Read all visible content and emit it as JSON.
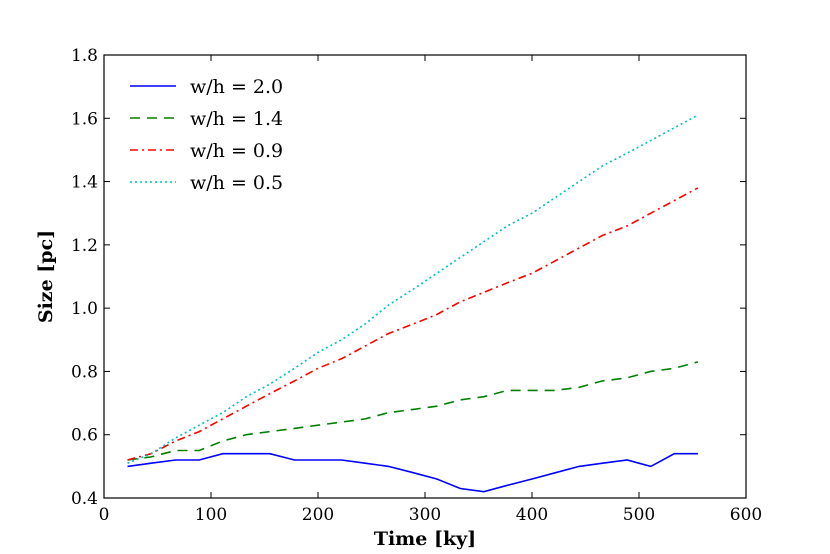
{
  "chart_data": {
    "type": "line",
    "title": "",
    "xlabel": "Time [ky]",
    "ylabel": "Size [pc]",
    "xlim": [
      0,
      600
    ],
    "ylim": [
      0.4,
      1.8
    ],
    "xticks": [
      0,
      100,
      200,
      300,
      400,
      500,
      600
    ],
    "xtick_labels": [
      "0",
      "100",
      "200",
      "300",
      "400",
      "500",
      "600"
    ],
    "yticks": [
      0.4,
      0.6,
      0.8,
      1.0,
      1.2,
      1.4,
      1.6,
      1.8
    ],
    "ytick_labels": [
      "0.4",
      "0.6",
      "0.8",
      "1.0",
      "1.2",
      "1.4",
      "1.6",
      "1.8"
    ],
    "grid": false,
    "legend_position": "top-left",
    "series": [
      {
        "name": "w/h = 2.0",
        "color": "#0000ff",
        "style": "solid",
        "x": [
          22,
          44,
          67,
          89,
          111,
          133,
          155,
          178,
          200,
          222,
          244,
          266,
          289,
          311,
          333,
          355,
          377,
          400,
          422,
          444,
          466,
          489,
          511,
          533,
          555
        ],
        "y": [
          0.5,
          0.51,
          0.52,
          0.52,
          0.54,
          0.54,
          0.54,
          0.52,
          0.52,
          0.52,
          0.51,
          0.5,
          0.48,
          0.46,
          0.43,
          0.42,
          0.44,
          0.46,
          0.48,
          0.5,
          0.51,
          0.52,
          0.5,
          0.54,
          0.54
        ]
      },
      {
        "name": "w/h = 1.4",
        "color": "#008000",
        "style": "dashed",
        "x": [
          22,
          44,
          67,
          89,
          111,
          133,
          155,
          178,
          200,
          222,
          244,
          266,
          289,
          311,
          333,
          355,
          377,
          400,
          422,
          444,
          466,
          489,
          511,
          533,
          555
        ],
        "y": [
          0.52,
          0.53,
          0.55,
          0.55,
          0.58,
          0.6,
          0.61,
          0.62,
          0.63,
          0.64,
          0.65,
          0.67,
          0.68,
          0.69,
          0.71,
          0.72,
          0.74,
          0.74,
          0.74,
          0.75,
          0.77,
          0.78,
          0.8,
          0.81,
          0.83
        ]
      },
      {
        "name": "w/h = 0.9",
        "color": "#ff0000",
        "style": "dashdot",
        "x": [
          22,
          44,
          67,
          89,
          111,
          133,
          155,
          178,
          200,
          222,
          244,
          266,
          289,
          311,
          333,
          355,
          377,
          400,
          422,
          444,
          466,
          489,
          511,
          533,
          555
        ],
        "y": [
          0.52,
          0.54,
          0.58,
          0.61,
          0.65,
          0.69,
          0.73,
          0.77,
          0.81,
          0.84,
          0.88,
          0.92,
          0.95,
          0.98,
          1.02,
          1.05,
          1.08,
          1.11,
          1.15,
          1.19,
          1.23,
          1.26,
          1.3,
          1.34,
          1.38
        ]
      },
      {
        "name": "w/h = 0.5",
        "color": "#00bfbf",
        "style": "dotted",
        "x": [
          22,
          44,
          67,
          89,
          111,
          133,
          155,
          178,
          200,
          222,
          244,
          266,
          289,
          311,
          333,
          355,
          377,
          400,
          422,
          444,
          466,
          489,
          511,
          533,
          555
        ],
        "y": [
          0.51,
          0.54,
          0.59,
          0.63,
          0.67,
          0.72,
          0.76,
          0.81,
          0.86,
          0.9,
          0.95,
          1.01,
          1.06,
          1.11,
          1.16,
          1.21,
          1.26,
          1.3,
          1.35,
          1.4,
          1.45,
          1.49,
          1.53,
          1.57,
          1.61
        ]
      }
    ]
  }
}
